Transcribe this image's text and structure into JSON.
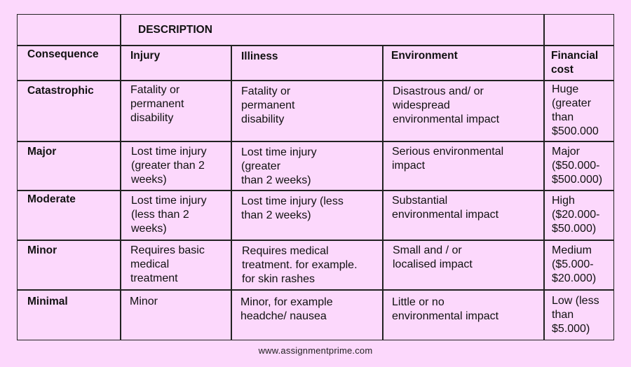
{
  "table": {
    "description_header": "DESCRIPTION",
    "headers": {
      "consequence": "Consequence",
      "injury": "Injury",
      "illness": "Illiness",
      "environment": "Environment",
      "financial": "Financial\ncost"
    },
    "rows": [
      {
        "consequence": "Catastrophic",
        "injury": "Fatality or\npermanent\ndisability",
        "illness": "Fatality or\npermanent\ndisability",
        "environment": "Disastrous and/ or\nwidespread\nenvironmental impact",
        "financial": "Huge\n(greater\nthan\n$500.000"
      },
      {
        "consequence": "Major",
        "injury": "Lost time injury\n(greater than 2\nweeks)",
        "illness": "Lost time injury\n(greater\nthan 2 weeks)",
        "environment": "Serious environmental\nimpact",
        "financial": "Major\n($50.000-\n$500.000)"
      },
      {
        "consequence": "Moderate",
        "injury": "Lost time injury\n(less than 2\nweeks)",
        "illness": "Lost time injury (less\nthan 2 weeks)",
        "environment": "Substantial\nenvironmental  impact",
        "financial": "High\n($20.000-\n$50.000)"
      },
      {
        "consequence": "Minor",
        "injury": "Requires basic\nmedical\ntreatment",
        "illness": "Requires medical\ntreatment. for example.\nfor skin rashes",
        "environment": "Small and / or\nlocalised impact",
        "financial": "Medium\n($5.000-\n$20.000)"
      },
      {
        "consequence": "Minimal",
        "injury": "Minor",
        "illness": "Minor, for example\nheadche/ nausea",
        "environment": "Little or no\nenvironmental impact",
        "financial": "Low (less\nthan\n$5.000)"
      }
    ]
  },
  "footer": {
    "website": "www.assignmentprime.com"
  }
}
